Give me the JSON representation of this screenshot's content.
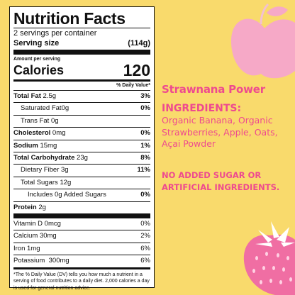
{
  "colors": {
    "background": "#f9da6c",
    "accent": "#ee4a8f",
    "fruit_pink": "#f6a9c7",
    "fruit_dark": "#f06ea3",
    "leaf": "#ffffff"
  },
  "nutrition_facts": {
    "title": "Nutrition Facts",
    "servings_per_container": "2 servings per container",
    "serving_size_label": "Serving size",
    "serving_size_value": "(114g)",
    "amount_per_serving": "Amount per serving",
    "calories_label": "Calories",
    "calories_value": "120",
    "daily_value_header": "% Daily Value*",
    "rows": [
      {
        "label": "Total Fat",
        "amount": "2.5g",
        "pct": "3%"
      },
      {
        "label": "Saturated Fat",
        "amount": "0g",
        "pct": "0%"
      },
      {
        "label": "Trans Fat",
        "amount": "0g",
        "pct": ""
      },
      {
        "label": "Cholesterol",
        "amount": "0mg",
        "pct": "0%"
      },
      {
        "label": "Sodium",
        "amount": "15mg",
        "pct": "1%"
      },
      {
        "label": "Total Carbohydrate",
        "amount": "23g",
        "pct": "8%"
      },
      {
        "label": "Dietary Fiber",
        "amount": "3g",
        "pct": "11%"
      },
      {
        "label": "Total Sugars",
        "amount": "12g",
        "pct": ""
      },
      {
        "label": "Includes 0g Added Sugars",
        "amount": "",
        "pct": "0%"
      },
      {
        "label": "Protein",
        "amount": "2g",
        "pct": ""
      }
    ],
    "vitamins": [
      {
        "label": "Vitamin D",
        "amount": "0mcg",
        "pct": "0%"
      },
      {
        "label": "Calcium",
        "amount": "30mg",
        "pct": "2%"
      },
      {
        "label": "Iron",
        "amount": "1mg",
        "pct": "6%"
      },
      {
        "label": "Potassium",
        "amount": "300mg",
        "pct": "6%"
      }
    ],
    "footnote": "*The % Daily Value (DV) tells you how much a nutrient in a serving of food contributes to a daily diet. 2,000 calories a day is used for general nutrition advice."
  },
  "product": {
    "name": "Strawnana Power",
    "ingredients_heading": "INGREDIENTS:",
    "ingredients_text": "Organic Banana, Organic Strawberries, Apple, Oats, Açai Powder",
    "claim": "NO ADDED SUGAR OR ARTIFICIAL INGREDIENTS."
  },
  "decorations": {
    "top_right": "apple-illustration",
    "bottom_right": "strawberry-illustration"
  }
}
